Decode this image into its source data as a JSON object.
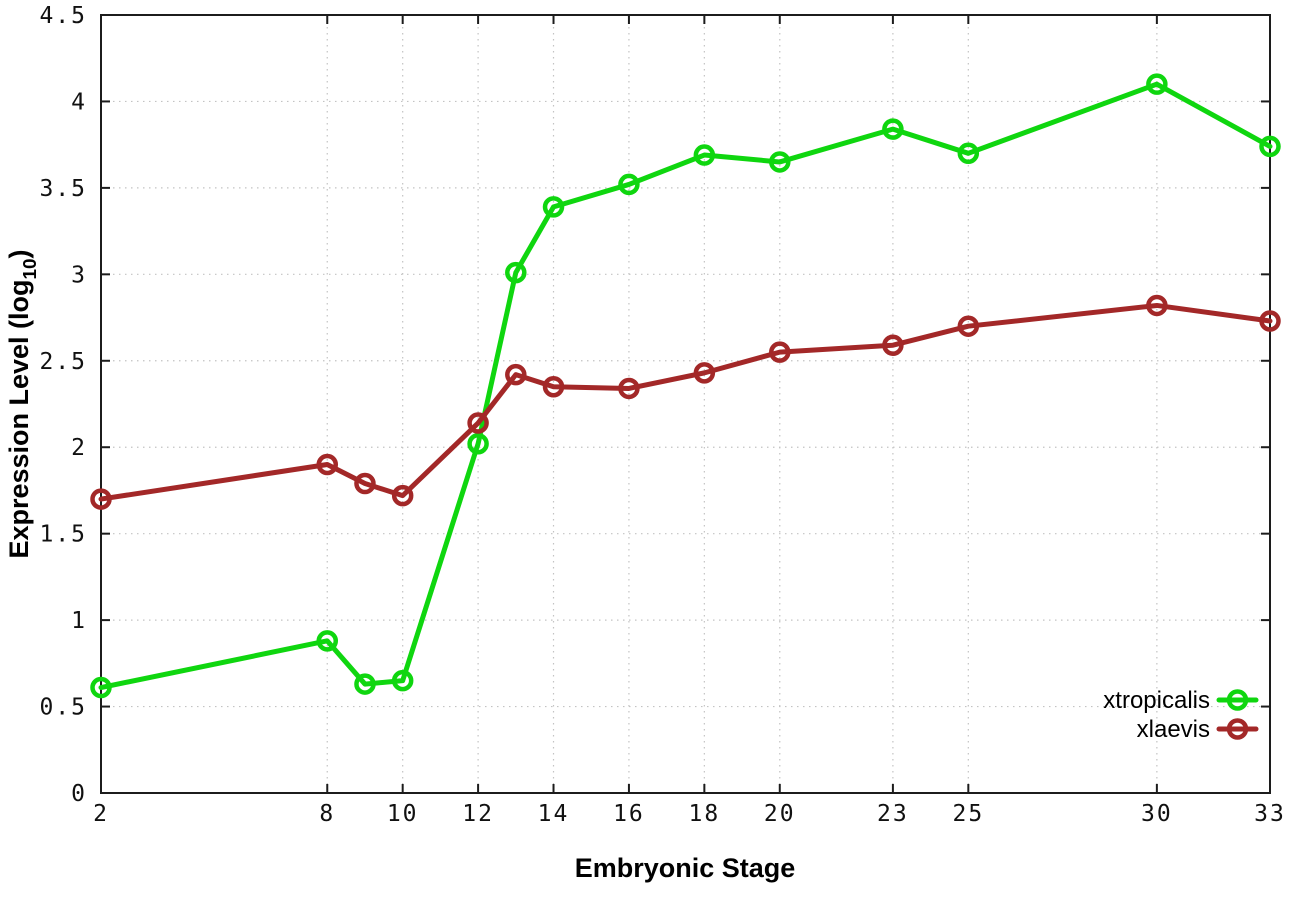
{
  "chart_data": {
    "type": "line",
    "title": "",
    "xlabel": "Embryonic Stage",
    "ylabel": "Expression Level (log10)",
    "ylabel_parts": {
      "prefix": "Expression Level (log",
      "subscript": "10",
      "suffix": ")"
    },
    "xlim": [
      2,
      33
    ],
    "ylim": [
      0,
      4.5
    ],
    "x_ticks": [
      2,
      8,
      10,
      12,
      14,
      16,
      18,
      20,
      23,
      25,
      30,
      33
    ],
    "y_ticks": [
      0,
      0.5,
      1,
      1.5,
      2,
      2.5,
      3,
      3.5,
      4,
      4.5
    ],
    "grid": true,
    "legend_position": "inside-bottom-right",
    "x": [
      2,
      8,
      9,
      10,
      12,
      13,
      14,
      16,
      18,
      20,
      23,
      25,
      30,
      33
    ],
    "series": [
      {
        "name": "xtropicalis",
        "color": "#0fd60f",
        "values": [
          0.61,
          0.88,
          0.63,
          0.65,
          2.02,
          3.01,
          3.39,
          3.52,
          3.69,
          3.65,
          3.84,
          3.7,
          4.1,
          3.74
        ]
      },
      {
        "name": "xlaevis",
        "color": "#a32828",
        "values": [
          1.7,
          1.9,
          1.79,
          1.72,
          2.14,
          2.42,
          2.35,
          2.34,
          2.43,
          2.55,
          2.59,
          2.7,
          2.82,
          2.73
        ]
      }
    ],
    "styles": {
      "background": "#ffffff",
      "grid_color": "#c3c3c3",
      "axis_color": "#1c1c1c",
      "text_color": "#000000"
    }
  }
}
